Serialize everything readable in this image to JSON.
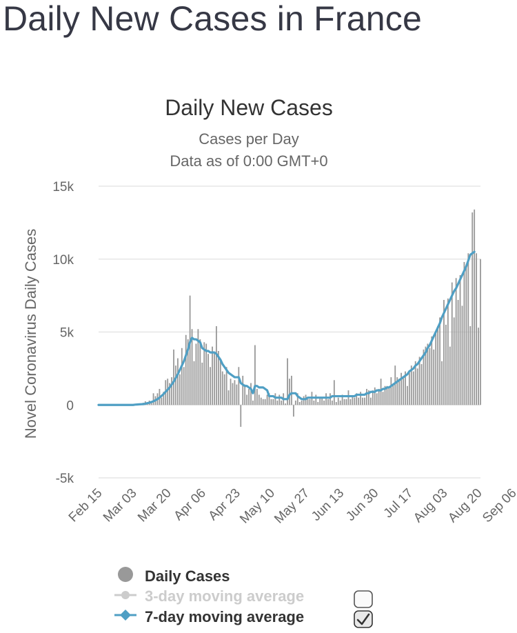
{
  "page": {
    "title": "Daily New Cases in France"
  },
  "colors": {
    "bars": "#999999",
    "ma3": "#cccccc",
    "ma7": "#4f9fc4",
    "grid": "#e6e6e6",
    "text": "#333333",
    "axis_text": "#666666"
  },
  "chart_data": {
    "type": "bar",
    "title": "Daily New Cases",
    "subtitle_lines": [
      "Cases per Day",
      "Data as of 0:00 GMT+0"
    ],
    "ylabel": "Novel Coronavirus Daily Cases",
    "xlabel": "",
    "ylim": [
      -5000,
      15000
    ],
    "y_ticks": [
      {
        "value": 15000,
        "label": "15k"
      },
      {
        "value": 10000,
        "label": "10k"
      },
      {
        "value": 5000,
        "label": "5k"
      },
      {
        "value": 0,
        "label": "0"
      },
      {
        "value": -5000,
        "label": "-5k"
      }
    ],
    "x_ticks": [
      "Feb 15",
      "Mar 03",
      "Mar 20",
      "Apr 06",
      "Apr 23",
      "May 10",
      "May 27",
      "Jun 13",
      "Jun 30",
      "Jul 17",
      "Aug 03",
      "Aug 20",
      "Sep 06"
    ],
    "start_date": "Feb 15",
    "grid": true,
    "legend": {
      "position": "bottom",
      "items": [
        {
          "name": "Daily Cases",
          "marker": "circle",
          "enabled": true
        },
        {
          "name": "3-day moving average",
          "marker": "line-circle",
          "enabled": false
        },
        {
          "name": "7-day moving average",
          "marker": "line-diamond",
          "enabled": true
        }
      ]
    },
    "series": [
      {
        "name": "Daily Cases",
        "type": "bar",
        "values": [
          0,
          0,
          0,
          0,
          0,
          0,
          0,
          0,
          0,
          0,
          0,
          0,
          0,
          0,
          0,
          0,
          20,
          60,
          0,
          80,
          100,
          40,
          150,
          250,
          190,
          300,
          130,
          800,
          600,
          800,
          1100,
          500,
          900,
          1700,
          1800,
          1500,
          1900,
          3800,
          2700,
          3200,
          2100,
          3900,
          2600,
          4800,
          4500,
          7500,
          5200,
          3000,
          4200,
          5200,
          4500,
          2900,
          4300,
          4200,
          3500,
          2600,
          4000,
          3600,
          5400,
          3700,
          3100,
          2300,
          2100,
          2600,
          1000,
          1800,
          1500,
          1700,
          1400,
          2600,
          -1500,
          2000,
          1400,
          700,
          1100,
          1500,
          300,
          4100,
          1100,
          700,
          500,
          400,
          400,
          700,
          800,
          400,
          400,
          800,
          300,
          700,
          300,
          800,
          100,
          3200,
          1800,
          2000,
          -800,
          300,
          800,
          200,
          300,
          600,
          700,
          400,
          400,
          900,
          300,
          700,
          200,
          500,
          500,
          300,
          800,
          400,
          800,
          300,
          1700,
          200,
          500,
          300,
          700,
          400,
          400,
          1000,
          400,
          600,
          500,
          800,
          500,
          900,
          500,
          500,
          1100,
          1000,
          500,
          1000,
          1200,
          800,
          1100,
          1800,
          900,
          1300,
          1300,
          1200,
          1900,
          1400,
          2700,
          1900,
          1800,
          2200,
          1900,
          2300,
          1300,
          2200,
          2700,
          2300,
          3000,
          2500,
          3300,
          2800,
          3800,
          4000,
          4200,
          3900,
          4700,
          3800,
          5000,
          5400,
          6000,
          3000,
          7200,
          5500,
          7300,
          4000,
          8400,
          6000,
          8700,
          7200,
          8900,
          6800,
          9800,
          9500,
          10400,
          5400,
          13200,
          13400,
          10400,
          5300,
          10000
        ]
      },
      {
        "name": "7-day moving average",
        "type": "line",
        "values": [
          0,
          0,
          0,
          0,
          0,
          0,
          0,
          0,
          0,
          0,
          0,
          0,
          0,
          0,
          0,
          0,
          0,
          0,
          20,
          30,
          40,
          50,
          60,
          80,
          120,
          150,
          200,
          250,
          320,
          400,
          500,
          620,
          750,
          900,
          1050,
          1200,
          1400,
          1600,
          1850,
          2100,
          2400,
          2700,
          3000,
          3400,
          3800,
          4300,
          4600,
          4500,
          4500,
          4400,
          4300,
          3900,
          3800,
          3700,
          3700,
          3600,
          3600,
          3600,
          3500,
          3300,
          3100,
          2800,
          2600,
          2400,
          2200,
          2100,
          2000,
          1900,
          1900,
          1900,
          1500,
          1400,
          1300,
          1300,
          1200,
          1100,
          800,
          1300,
          1300,
          1200,
          1200,
          1200,
          1100,
          1000,
          600,
          600,
          600,
          500,
          500,
          500,
          500,
          400,
          400,
          400,
          700,
          800,
          800,
          800,
          600,
          500,
          400,
          400,
          400,
          500,
          500,
          500,
          500,
          500,
          500,
          500,
          500,
          500,
          500,
          500,
          500,
          600,
          600,
          600,
          600,
          600,
          600,
          600,
          600,
          600,
          600,
          600,
          600,
          700,
          700,
          700,
          700,
          700,
          800,
          800,
          900,
          900,
          900,
          1000,
          1000,
          1000,
          1100,
          1100,
          1200,
          1200,
          1300,
          1400,
          1500,
          1600,
          1700,
          1800,
          1900,
          2000,
          2100,
          2300,
          2400,
          2500,
          2700,
          2800,
          3000,
          3200,
          3400,
          3600,
          3900,
          4100,
          4400,
          4700,
          5000,
          5300,
          5600,
          6000,
          6300,
          6600,
          6900,
          7200,
          7500,
          7800,
          8000,
          8300,
          8600,
          8900,
          9200,
          9500,
          9900,
          10300,
          10400,
          10500
        ]
      }
    ]
  }
}
